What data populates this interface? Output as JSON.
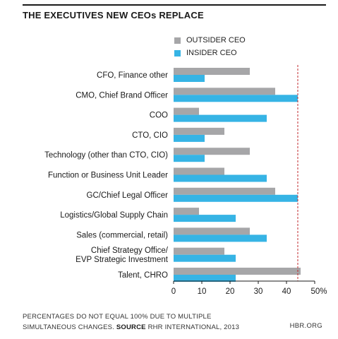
{
  "chart_data": {
    "type": "bar",
    "orientation": "horizontal",
    "title": "THE EXECUTIVES NEW CEOs REPLACE",
    "categories": [
      "CFO, Finance other",
      "CMO, Chief Brand Officer",
      "COO",
      "CTO, CIO",
      "Technology (other than CTO, CIO)",
      "Function or Business Unit Leader",
      "GC/Chief Legal Officer",
      "Logistics/Global Supply Chain",
      "Sales (commercial, retail)",
      "Chief Strategy Office/\nEVP Strategic Investment",
      "Talent, CHRO"
    ],
    "series": [
      {
        "name": "OUTSIDER CEO",
        "color": "#a6a6a8",
        "values": [
          27,
          36,
          9,
          18,
          27,
          18,
          36,
          9,
          27,
          18,
          45
        ]
      },
      {
        "name": "INSIDER CEO",
        "color": "#36b4e5",
        "values": [
          11,
          44,
          33,
          11,
          11,
          33,
          44,
          22,
          33,
          22,
          22
        ]
      }
    ],
    "xlim": [
      0,
      50
    ],
    "xticks": [
      "0",
      "10",
      "20",
      "30",
      "40",
      "50%"
    ],
    "reference_line": {
      "value": 44,
      "color": "#c0282d",
      "style": "dashed"
    },
    "legend_position": "top"
  },
  "footer": {
    "note_line1": "PERCENTAGES DO NOT EQUAL 100% DUE TO MULTIPLE",
    "note_line2": "SIMULTANEOUS CHANGES.",
    "source_label": "SOURCE",
    "source_text": "RHR INTERNATIONAL, 2013",
    "brand": "HBR.ORG"
  }
}
